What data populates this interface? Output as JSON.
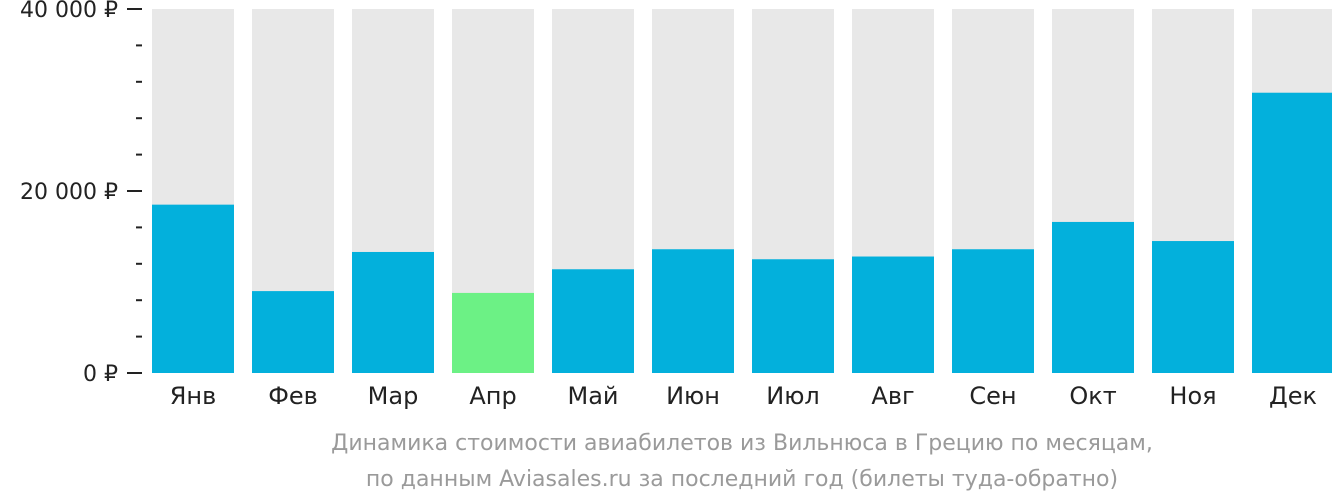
{
  "chart_data": {
    "type": "bar",
    "categories": [
      "Янв",
      "Фев",
      "Мар",
      "Апр",
      "Май",
      "Июн",
      "Июл",
      "Авг",
      "Сен",
      "Окт",
      "Ноя",
      "Дек"
    ],
    "values": [
      18500,
      9000,
      13300,
      8800,
      11400,
      13600,
      12500,
      12800,
      13600,
      16600,
      14500,
      30800
    ],
    "ylim": [
      0,
      40000
    ],
    "yticks": [
      {
        "value": 0,
        "label": "0 ₽"
      },
      {
        "value": 20000,
        "label": "20 000 ₽"
      },
      {
        "value": 40000,
        "label": "40 000 ₽"
      }
    ],
    "minor_tick_step": 4000,
    "highlight_index": 3,
    "colors": {
      "bar": "#03b0dc",
      "highlight": "#6cf185",
      "track": "#e8e8e8",
      "axis": "#222222"
    },
    "caption": [
      "Динамика стоимости авиабилетов из Вильнюса в Грецию по месяцам,",
      "по данным Aviasales.ru за последний год (билеты туда-обратно)"
    ]
  }
}
